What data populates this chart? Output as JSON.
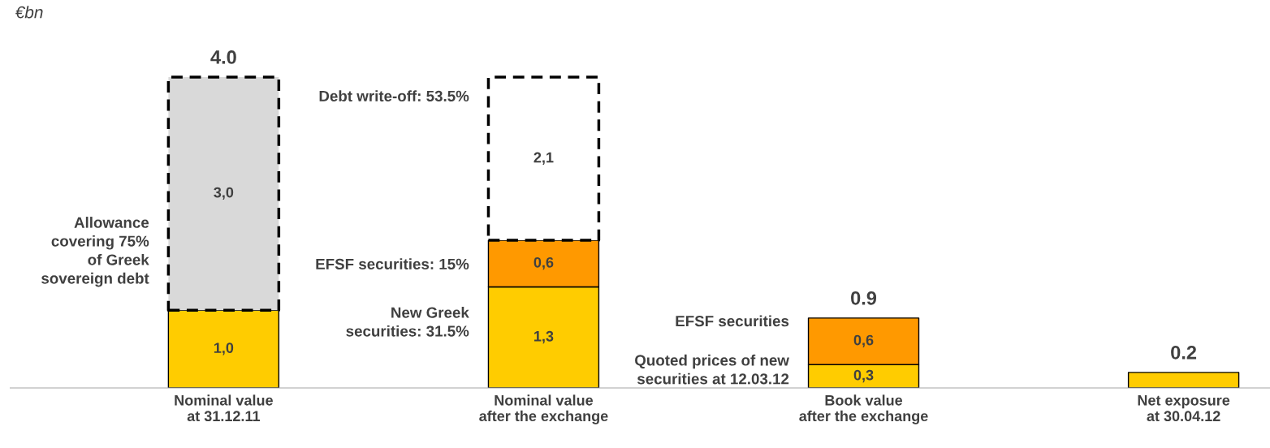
{
  "chart_data": {
    "type": "bar",
    "stacked": true,
    "categories": [
      "Nominal value\nat 31.12.11",
      "Nominal value\nafter the exchange",
      "Book value\nafter the exchange",
      "Net exposure\nat 30.04.12"
    ],
    "series": [
      {
        "color": "#ffcc00",
        "values": [
          1.0,
          1.3,
          0.3,
          0.2
        ],
        "value_labels": [
          "1,0",
          "1,3",
          "0,3",
          null
        ]
      },
      {
        "color": "#ff9900",
        "values": [
          null,
          0.6,
          0.6,
          null
        ],
        "value_labels": [
          null,
          "0,6",
          "0,6",
          null
        ]
      },
      {
        "colors": [
          "#d9d9d9",
          "#ffffff",
          "#ffffff",
          "#ffffff"
        ],
        "line_style": "dashed",
        "values": [
          3.0,
          2.1,
          null,
          null
        ],
        "value_labels": [
          "3,0",
          "2,1",
          null,
          null
        ]
      }
    ],
    "totals": [
      "4.0",
      null,
      "0.9",
      "0.2"
    ],
    "annotations": [
      "€bn",
      "Allowance\ncovering 75%\nof Greek\nsovereign debt",
      "Debt write-off: 53.5%",
      "EFSF securities: 15%",
      "New Greek\nsecurities: 31.5%",
      "EFSF securities",
      "Quoted prices of new\nsecurities at 12.03.12"
    ]
  }
}
